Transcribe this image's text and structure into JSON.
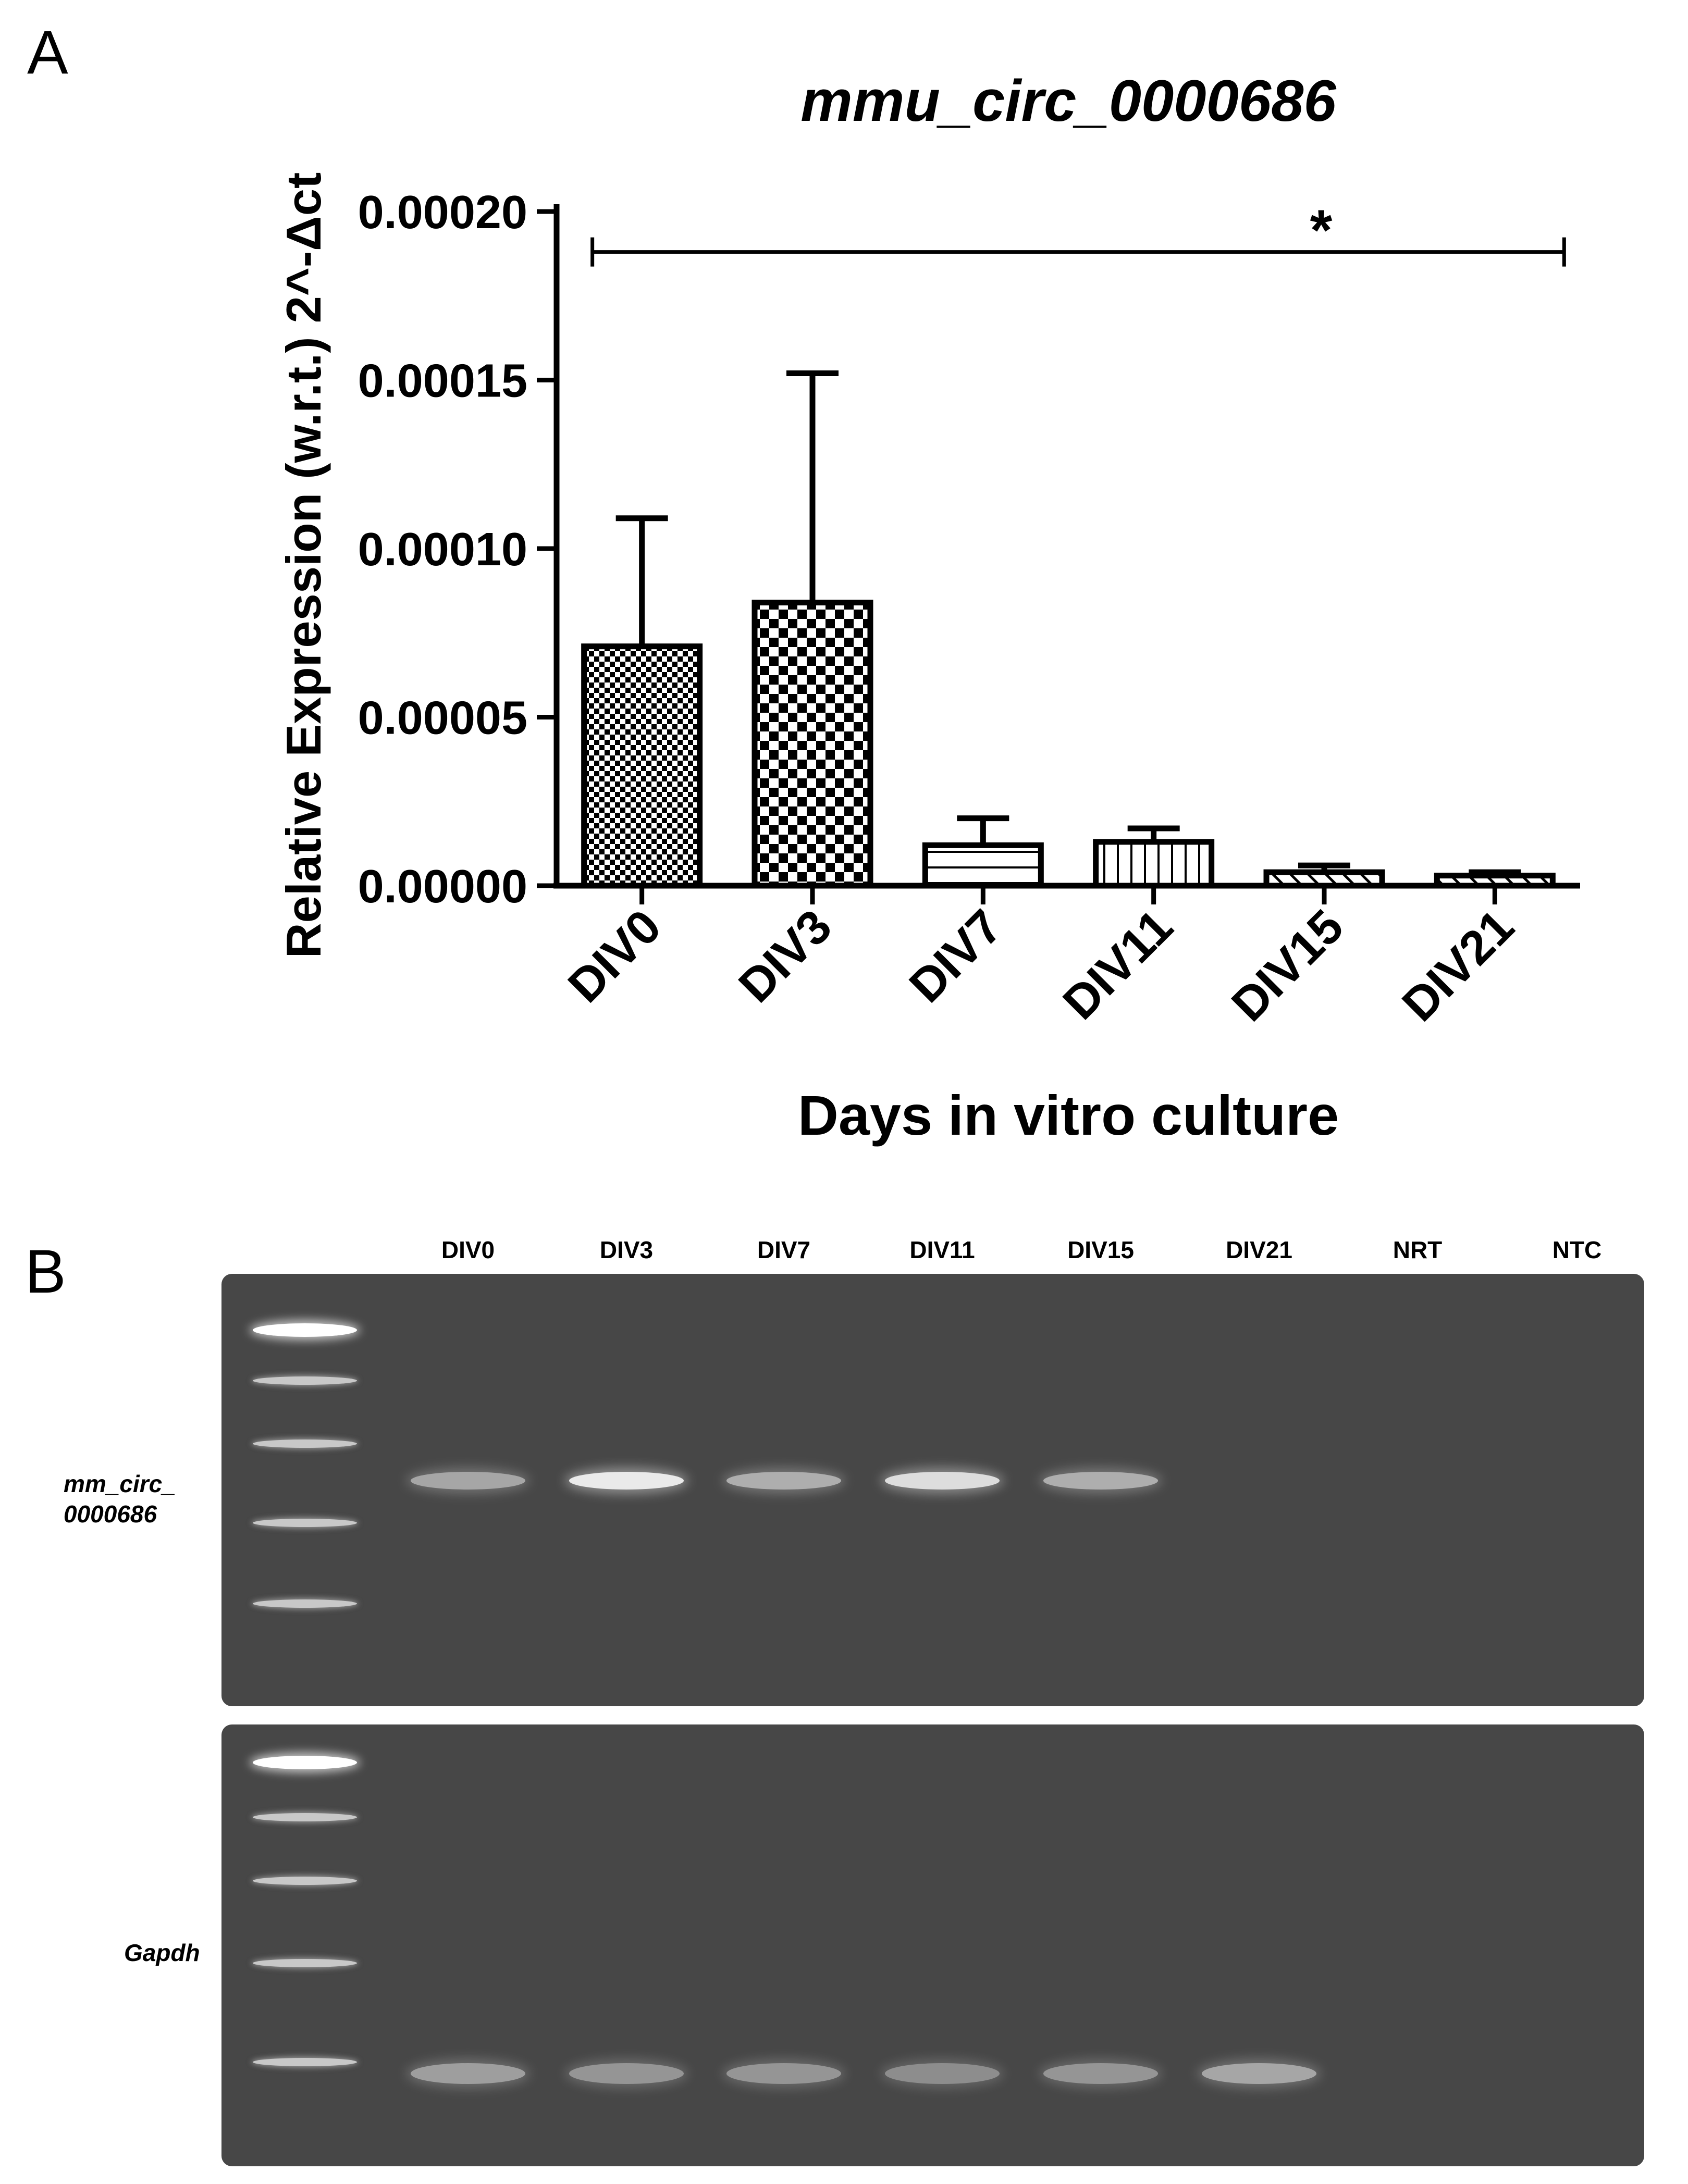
{
  "panel_a_letter": "A",
  "panel_b_letter": "B",
  "chart_data": {
    "type": "bar",
    "title": "mmu_circ_0000686",
    "xlabel": "Days in vitro culture",
    "ylabel": "Relative Expression (w.r.t.) 2^-Δct",
    "categories": [
      "DIV0",
      "DIV3",
      "DIV7",
      "DIV11",
      "DIV15",
      "DIV21"
    ],
    "values": [
      7.1e-05,
      8.4e-05,
      1.2e-05,
      1.3e-05,
      4e-06,
      3e-06
    ],
    "errors": [
      3.8e-05,
      6.8e-05,
      8e-06,
      4e-06,
      2e-06,
      1e-06
    ],
    "patterns": [
      "fine-checker",
      "checker",
      "horizontal-lines",
      "vertical-lines",
      "diagonal-lines",
      "diagonal-lines"
    ],
    "ylim": [
      0,
      0.0002
    ],
    "yticks": [
      0,
      5e-05,
      0.0001,
      0.00015,
      0.0002
    ],
    "ytick_labels": [
      "0.00000",
      "0.00005",
      "0.00010",
      "0.00015",
      "0.00020"
    ],
    "significance": {
      "from": "DIV0",
      "to": "DIV21",
      "label": "*",
      "y": 0.000188
    },
    "grid": false
  },
  "gel": {
    "lanes": [
      "DIV0",
      "DIV3",
      "DIV7",
      "DIV11",
      "DIV15",
      "DIV21",
      "NRT",
      "NTC"
    ],
    "top_row_label": "mm_circ_\n0000686",
    "bottom_row_label": "Gapdh",
    "top_row_bands": [
      0.55,
      0.9,
      0.6,
      0.85,
      0.6,
      0,
      0,
      0
    ],
    "bottom_row_bands": [
      0.5,
      0.45,
      0.45,
      0.4,
      0.45,
      0.55,
      0,
      0
    ]
  }
}
